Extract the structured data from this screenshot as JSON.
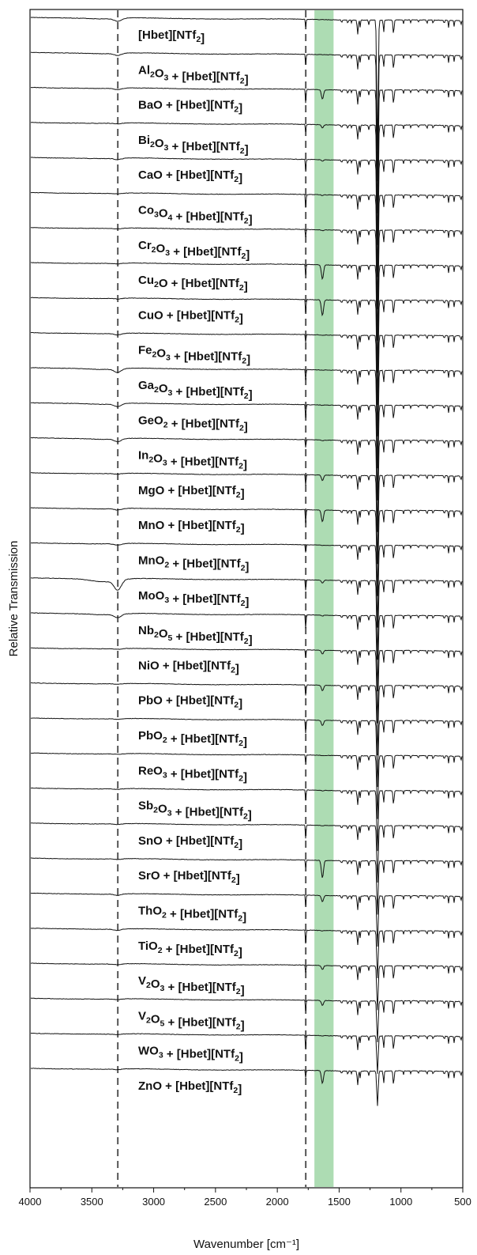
{
  "chart_data": {
    "type": "line",
    "xlabel": "Wavenumber [cm⁻¹]",
    "ylabel": "Relative Transmission",
    "xlim": [
      4000,
      500
    ],
    "x_reversed": true,
    "x_ticks": [
      "4000",
      "3500",
      "3000",
      "2500",
      "2000",
      "1500",
      "1000",
      "500"
    ],
    "x_tick_values": [
      4000,
      3500,
      3000,
      2500,
      2000,
      1500,
      1000,
      500
    ],
    "reference_lines": [
      3290,
      1770
    ],
    "highlight_band": [
      1700,
      1545
    ],
    "colors": {
      "line": "#111111",
      "dashed": "#555555",
      "band": "#9fd6a6"
    },
    "series": [
      {
        "name": "[Hbet][NTf2]",
        "label": [
          [
            "[Hbet][NTf",
            "n"
          ],
          [
            "2",
            "sub"
          ],
          [
            "]",
            "n"
          ]
        ],
        "oxide_peak": null,
        "oh": 0.2
      },
      {
        "name": "Al2O3 + [Hbet][NTf2]",
        "label": [
          [
            "Al",
            "n"
          ],
          [
            "2",
            "sub"
          ],
          [
            "O",
            "n"
          ],
          [
            "3",
            "sub"
          ],
          [
            " + [Hbet][NTf",
            "n"
          ],
          [
            "2",
            "sub"
          ],
          [
            "]",
            "n"
          ]
        ],
        "oxide_peak": 0.0,
        "oh": 0.15
      },
      {
        "name": "BaO + [Hbet][NTf2]",
        "label": [
          [
            "BaO + [Hbet][NTf",
            "n"
          ],
          [
            "2",
            "sub"
          ],
          [
            "]",
            "n"
          ]
        ],
        "oxide_peak": 12,
        "oh": 0.1
      },
      {
        "name": "Bi2O3 + [Hbet][NTf2]",
        "label": [
          [
            "Bi",
            "n"
          ],
          [
            "2",
            "sub"
          ],
          [
            "O",
            "n"
          ],
          [
            "3",
            "sub"
          ],
          [
            " + [Hbet][NTf",
            "n"
          ],
          [
            "2",
            "sub"
          ],
          [
            "]",
            "n"
          ]
        ],
        "oxide_peak": 4,
        "oh": 0.05
      },
      {
        "name": "CaO + [Hbet][NTf2]",
        "label": [
          [
            "CaO + [Hbet][NTf",
            "n"
          ],
          [
            "2",
            "sub"
          ],
          [
            "]",
            "n"
          ]
        ],
        "oxide_peak": 2,
        "oh": 0.1
      },
      {
        "name": "Co3O4 + [Hbet][NTf2]",
        "label": [
          [
            "Co",
            "n"
          ],
          [
            "3",
            "sub"
          ],
          [
            "O",
            "n"
          ],
          [
            "4",
            "sub"
          ],
          [
            " + [Hbet][NTf",
            "n"
          ],
          [
            "2",
            "sub"
          ],
          [
            "]",
            "n"
          ]
        ],
        "oxide_peak": 1,
        "oh": 0.05
      },
      {
        "name": "Cr2O3 + [Hbet][NTf2]",
        "label": [
          [
            "Cr",
            "n"
          ],
          [
            "2",
            "sub"
          ],
          [
            "O",
            "n"
          ],
          [
            "3",
            "sub"
          ],
          [
            " + [Hbet][NTf",
            "n"
          ],
          [
            "2",
            "sub"
          ],
          [
            "]",
            "n"
          ]
        ],
        "oxide_peak": 1,
        "oh": 0.05
      },
      {
        "name": "Cu2O + [Hbet][NTf2]",
        "label": [
          [
            "Cu",
            "n"
          ],
          [
            "2",
            "sub"
          ],
          [
            "O + [Hbet][NTf",
            "n"
          ],
          [
            "2",
            "sub"
          ],
          [
            "]",
            "n"
          ]
        ],
        "oxide_peak": 18,
        "oh": 0.05
      },
      {
        "name": "CuO + [Hbet][NTf2]",
        "label": [
          [
            "CuO + [Hbet][NTf",
            "n"
          ],
          [
            "2",
            "sub"
          ],
          [
            "]",
            "n"
          ]
        ],
        "oxide_peak": 20,
        "oh": 0.05
      },
      {
        "name": "Fe2O3 + [Hbet][NTf2]",
        "label": [
          [
            "Fe",
            "n"
          ],
          [
            "2",
            "sub"
          ],
          [
            "O",
            "n"
          ],
          [
            "3",
            "sub"
          ],
          [
            " + [Hbet][NTf",
            "n"
          ],
          [
            "2",
            "sub"
          ],
          [
            "]",
            "n"
          ]
        ],
        "oxide_peak": 0.5,
        "oh": 0.1
      },
      {
        "name": "Ga2O3 + [Hbet][NTf2]",
        "label": [
          [
            "Ga",
            "n"
          ],
          [
            "2",
            "sub"
          ],
          [
            "O",
            "n"
          ],
          [
            "3",
            "sub"
          ],
          [
            " + [Hbet][NTf",
            "n"
          ],
          [
            "2",
            "sub"
          ],
          [
            "]",
            "n"
          ]
        ],
        "oxide_peak": 0.5,
        "oh": 0.25
      },
      {
        "name": "GeO2 + [Hbet][NTf2]",
        "label": [
          [
            "GeO",
            "n"
          ],
          [
            "2",
            "sub"
          ],
          [
            " + [Hbet][NTf",
            "n"
          ],
          [
            "2",
            "sub"
          ],
          [
            "]",
            "n"
          ]
        ],
        "oxide_peak": 0.5,
        "oh": 0.2
      },
      {
        "name": "In2O3 + [Hbet][NTf2]",
        "label": [
          [
            "In",
            "n"
          ],
          [
            "2",
            "sub"
          ],
          [
            "O",
            "n"
          ],
          [
            "3",
            "sub"
          ],
          [
            " + [Hbet][NTf",
            "n"
          ],
          [
            "2",
            "sub"
          ],
          [
            "]",
            "n"
          ]
        ],
        "oxide_peak": 1,
        "oh": 0.2
      },
      {
        "name": "MgO + [Hbet][NTf2]",
        "label": [
          [
            "MgO + [Hbet][NTf",
            "n"
          ],
          [
            "2",
            "sub"
          ],
          [
            "]",
            "n"
          ]
        ],
        "oxide_peak": 7,
        "oh": 0.05
      },
      {
        "name": "MnO + [Hbet][NTf2]",
        "label": [
          [
            "MnO + [Hbet][NTf",
            "n"
          ],
          [
            "2",
            "sub"
          ],
          [
            "]",
            "n"
          ]
        ],
        "oxide_peak": 15,
        "oh": 0.1
      },
      {
        "name": "MnO2 + [Hbet][NTf2]",
        "label": [
          [
            "MnO",
            "n"
          ],
          [
            "2",
            "sub"
          ],
          [
            " + [Hbet][NTf",
            "n"
          ],
          [
            "2",
            "sub"
          ],
          [
            "]",
            "n"
          ]
        ],
        "oxide_peak": 0.5,
        "oh": 0.1
      },
      {
        "name": "MoO3 + [Hbet][NTf2]",
        "label": [
          [
            "MoO",
            "n"
          ],
          [
            "3",
            "sub"
          ],
          [
            " + [Hbet][NTf",
            "n"
          ],
          [
            "2",
            "sub"
          ],
          [
            "]",
            "n"
          ]
        ],
        "oxide_peak": 4,
        "oh": 0.7
      },
      {
        "name": "Nb2O5 + [Hbet][NTf2]",
        "label": [
          [
            "Nb",
            "n"
          ],
          [
            "2",
            "sub"
          ],
          [
            "O",
            "n"
          ],
          [
            "5",
            "sub"
          ],
          [
            " + [Hbet][NTf",
            "n"
          ],
          [
            "2",
            "sub"
          ],
          [
            "]",
            "n"
          ]
        ],
        "oxide_peak": 1,
        "oh": 0.25
      },
      {
        "name": "NiO + [Hbet][NTf2]",
        "label": [
          [
            "NiO + [Hbet][NTf",
            "n"
          ],
          [
            "2",
            "sub"
          ],
          [
            "]",
            "n"
          ]
        ],
        "oxide_peak": 5,
        "oh": 0.05
      },
      {
        "name": "PbO + [Hbet][NTf2]",
        "label": [
          [
            "PbO + [Hbet][NTf",
            "n"
          ],
          [
            "2",
            "sub"
          ],
          [
            "]",
            "n"
          ]
        ],
        "oxide_peak": 7,
        "oh": 0.05
      },
      {
        "name": "PbO2 + [Hbet][NTf2]",
        "label": [
          [
            "PbO",
            "n"
          ],
          [
            "2",
            "sub"
          ],
          [
            " + [Hbet][NTf",
            "n"
          ],
          [
            "2",
            "sub"
          ],
          [
            "]",
            "n"
          ]
        ],
        "oxide_peak": 7,
        "oh": 0.05
      },
      {
        "name": "ReO3 + [Hbet][NTf2]",
        "label": [
          [
            "ReO",
            "n"
          ],
          [
            "3",
            "sub"
          ],
          [
            " + [Hbet][NTf",
            "n"
          ],
          [
            "2",
            "sub"
          ],
          [
            "]",
            "n"
          ]
        ],
        "oxide_peak": 0.5,
        "oh": 0.05
      },
      {
        "name": "Sb2O3 + [Hbet][NTf2]",
        "label": [
          [
            "Sb",
            "n"
          ],
          [
            "2",
            "sub"
          ],
          [
            "O",
            "n"
          ],
          [
            "3",
            "sub"
          ],
          [
            " + [Hbet][NTf",
            "n"
          ],
          [
            "2",
            "sub"
          ],
          [
            "]",
            "n"
          ]
        ],
        "oxide_peak": 0.5,
        "oh": 0.05
      },
      {
        "name": "SnO + [Hbet][NTf2]",
        "label": [
          [
            "SnO + [Hbet][NTf",
            "n"
          ],
          [
            "2",
            "sub"
          ],
          [
            "]",
            "n"
          ]
        ],
        "oxide_peak": 0.5,
        "oh": 0.05
      },
      {
        "name": "SrO + [Hbet][NTf2]",
        "label": [
          [
            "SrO + [Hbet][NTf",
            "n"
          ],
          [
            "2",
            "sub"
          ],
          [
            "]",
            "n"
          ]
        ],
        "oxide_peak": 22,
        "oh": 0.05
      },
      {
        "name": "ThO2 + [Hbet][NTf2]",
        "label": [
          [
            "ThO",
            "n"
          ],
          [
            "2",
            "sub"
          ],
          [
            " + [Hbet][NTf",
            "n"
          ],
          [
            "2",
            "sub"
          ],
          [
            "]",
            "n"
          ]
        ],
        "oxide_peak": 8,
        "oh": 0.1
      },
      {
        "name": "TiO2 + [Hbet][NTf2]",
        "label": [
          [
            "TiO",
            "n"
          ],
          [
            "2",
            "sub"
          ],
          [
            " + [Hbet][NTf",
            "n"
          ],
          [
            "2",
            "sub"
          ],
          [
            "]",
            "n"
          ]
        ],
        "oxide_peak": 0.5,
        "oh": 0.1
      },
      {
        "name": "V2O3 + [Hbet][NTf2]",
        "label": [
          [
            "V",
            "n"
          ],
          [
            "2",
            "sub"
          ],
          [
            "O",
            "n"
          ],
          [
            "3",
            "sub"
          ],
          [
            " + [Hbet][NTf",
            "n"
          ],
          [
            "2",
            "sub"
          ],
          [
            "]",
            "n"
          ]
        ],
        "oxide_peak": 5,
        "oh": 0.05
      },
      {
        "name": "V2O5 + [Hbet][NTf2]",
        "label": [
          [
            "V",
            "n"
          ],
          [
            "2",
            "sub"
          ],
          [
            "O",
            "n"
          ],
          [
            "5",
            "sub"
          ],
          [
            " + [Hbet][NTf",
            "n"
          ],
          [
            "2",
            "sub"
          ],
          [
            "]",
            "n"
          ]
        ],
        "oxide_peak": 6,
        "oh": 0.05
      },
      {
        "name": "WO3 + [Hbet][NTf2]",
        "label": [
          [
            "WO",
            "n"
          ],
          [
            "3",
            "sub"
          ],
          [
            " + [Hbet][NTf",
            "n"
          ],
          [
            "2",
            "sub"
          ],
          [
            "]",
            "n"
          ]
        ],
        "oxide_peak": 0.5,
        "oh": 0.05
      },
      {
        "name": "ZnO + [Hbet][NTf2]",
        "label": [
          [
            "ZnO + [Hbet][NTf",
            "n"
          ],
          [
            "2",
            "sub"
          ],
          [
            "]",
            "n"
          ]
        ],
        "oxide_peak": 16,
        "oh": 0.05
      }
    ]
  }
}
